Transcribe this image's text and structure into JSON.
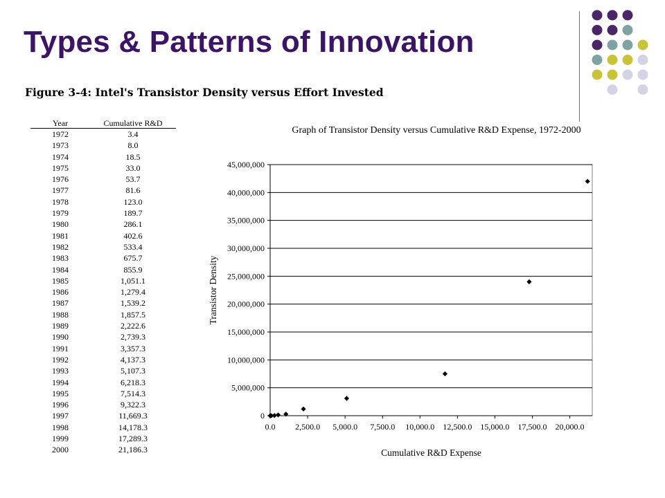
{
  "slide": {
    "title": "Types & Patterns of Innovation",
    "figure_caption": "Figure 3-4: Intel's Transistor Density versus Effort Invested",
    "dot_colors": [
      "#4b2568",
      "#7fa3a3",
      "#c9c33a",
      "#d4d3e6"
    ]
  },
  "table": {
    "headers": [
      "Year",
      "Cumulative R&D"
    ],
    "rows": [
      [
        "1972",
        "3.4"
      ],
      [
        "1973",
        "8.0"
      ],
      [
        "1974",
        "18.5"
      ],
      [
        "1975",
        "33.0"
      ],
      [
        "1976",
        "53.7"
      ],
      [
        "1977",
        "81.6"
      ],
      [
        "1978",
        "123.0"
      ],
      [
        "1979",
        "189.7"
      ],
      [
        "1980",
        "286.1"
      ],
      [
        "1981",
        "402.6"
      ],
      [
        "1982",
        "533.4"
      ],
      [
        "1983",
        "675.7"
      ],
      [
        "1984",
        "855.9"
      ],
      [
        "1985",
        "1,051.1"
      ],
      [
        "1986",
        "1,279.4"
      ],
      [
        "1987",
        "1,539.2"
      ],
      [
        "1988",
        "1,857.5"
      ],
      [
        "1989",
        "2,222.6"
      ],
      [
        "1990",
        "2,739.3"
      ],
      [
        "1991",
        "3,357.3"
      ],
      [
        "1992",
        "4,137.3"
      ],
      [
        "1993",
        "5,107.3"
      ],
      [
        "1994",
        "6,218.3"
      ],
      [
        "1995",
        "7,514.3"
      ],
      [
        "1996",
        "9,322.3"
      ],
      [
        "1997",
        "11,669.3"
      ],
      [
        "1998",
        "14,178.3"
      ],
      [
        "1999",
        "17,289.3"
      ],
      [
        "2000",
        "21,186.3"
      ]
    ]
  },
  "chart_data": {
    "type": "scatter",
    "title": "Graph of Transistor Density versus Cumulative R&D Expense, 1972-2000",
    "xlabel": "Cumulative R&D Expense",
    "ylabel": "Transistor Density",
    "xlim": [
      0,
      21500
    ],
    "ylim": [
      0,
      45000000
    ],
    "xticks": [
      0,
      2500,
      5000,
      7500,
      10000,
      12500,
      15000,
      17500,
      20000
    ],
    "xtick_labels": [
      "0.0",
      "2,500.0",
      "5,000.0",
      "7,500.0",
      "10,000.0",
      "12,500.0",
      "15,000.0",
      "17,500.0",
      "20,000.0"
    ],
    "yticks": [
      0,
      5000000,
      10000000,
      15000000,
      20000000,
      25000000,
      30000000,
      35000000,
      40000000,
      45000000
    ],
    "ytick_labels": [
      "0",
      "5,000,000",
      "10,000,000",
      "15,000,000",
      "20,000,000",
      "25,000,000",
      "30,000,000",
      "35,000,000",
      "40,000,000",
      "45,000,000"
    ],
    "grid": "horizontal",
    "marker": "diamond",
    "points": [
      {
        "x": 3.4,
        "y": 2300
      },
      {
        "x": 81.6,
        "y": 6000
      },
      {
        "x": 286.1,
        "y": 29000
      },
      {
        "x": 533.4,
        "y": 134000
      },
      {
        "x": 1051.1,
        "y": 275000
      },
      {
        "x": 2222.6,
        "y": 1200000
      },
      {
        "x": 5107.3,
        "y": 3100000
      },
      {
        "x": 11669.3,
        "y": 7500000
      },
      {
        "x": 17289.3,
        "y": 24000000
      },
      {
        "x": 21186.3,
        "y": 42000000
      }
    ]
  }
}
